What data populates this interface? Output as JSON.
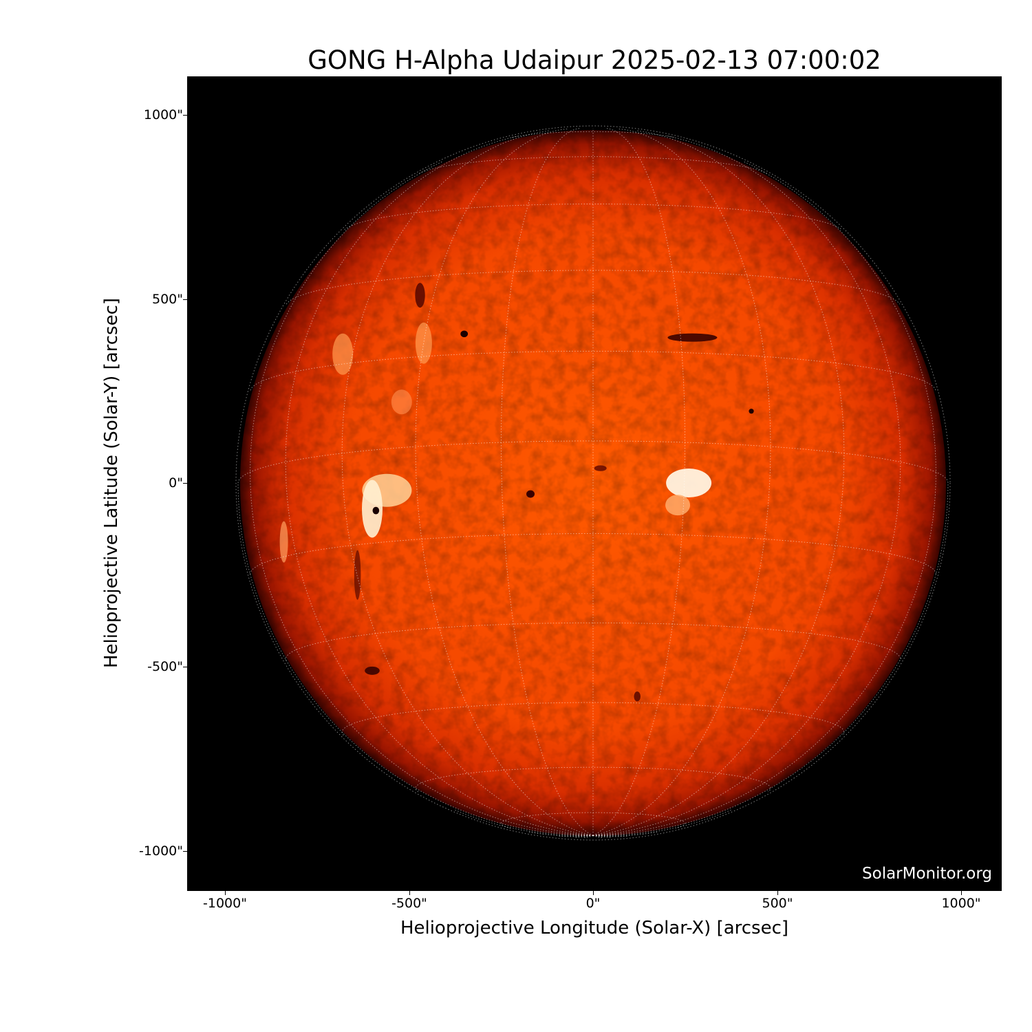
{
  "title": "GONG H-Alpha Udaipur 2025-02-13 07:00:02",
  "xlabel": "Helioprojective Longitude (Solar-X) [arcsec]",
  "ylabel": "Helioprojective Latitude (Solar-Y) [arcsec]",
  "xticks": [
    "-1000\"",
    "-500\"",
    "0\"",
    "500\"",
    "1000\""
  ],
  "yticks": [
    "1000\"",
    "500\"",
    "0\"",
    "-500\"",
    "-1000\""
  ],
  "watermark": "SolarMonitor.org",
  "axes": {
    "xlim_arcsec": [
      -1100,
      1100
    ],
    "ylim_arcsec": [
      -1100,
      1100
    ],
    "grid_spacing_deg": 15
  },
  "colors": {
    "disk_center": "#ff5500",
    "disk_limb": "#7a0d00",
    "background": "#000000"
  }
}
